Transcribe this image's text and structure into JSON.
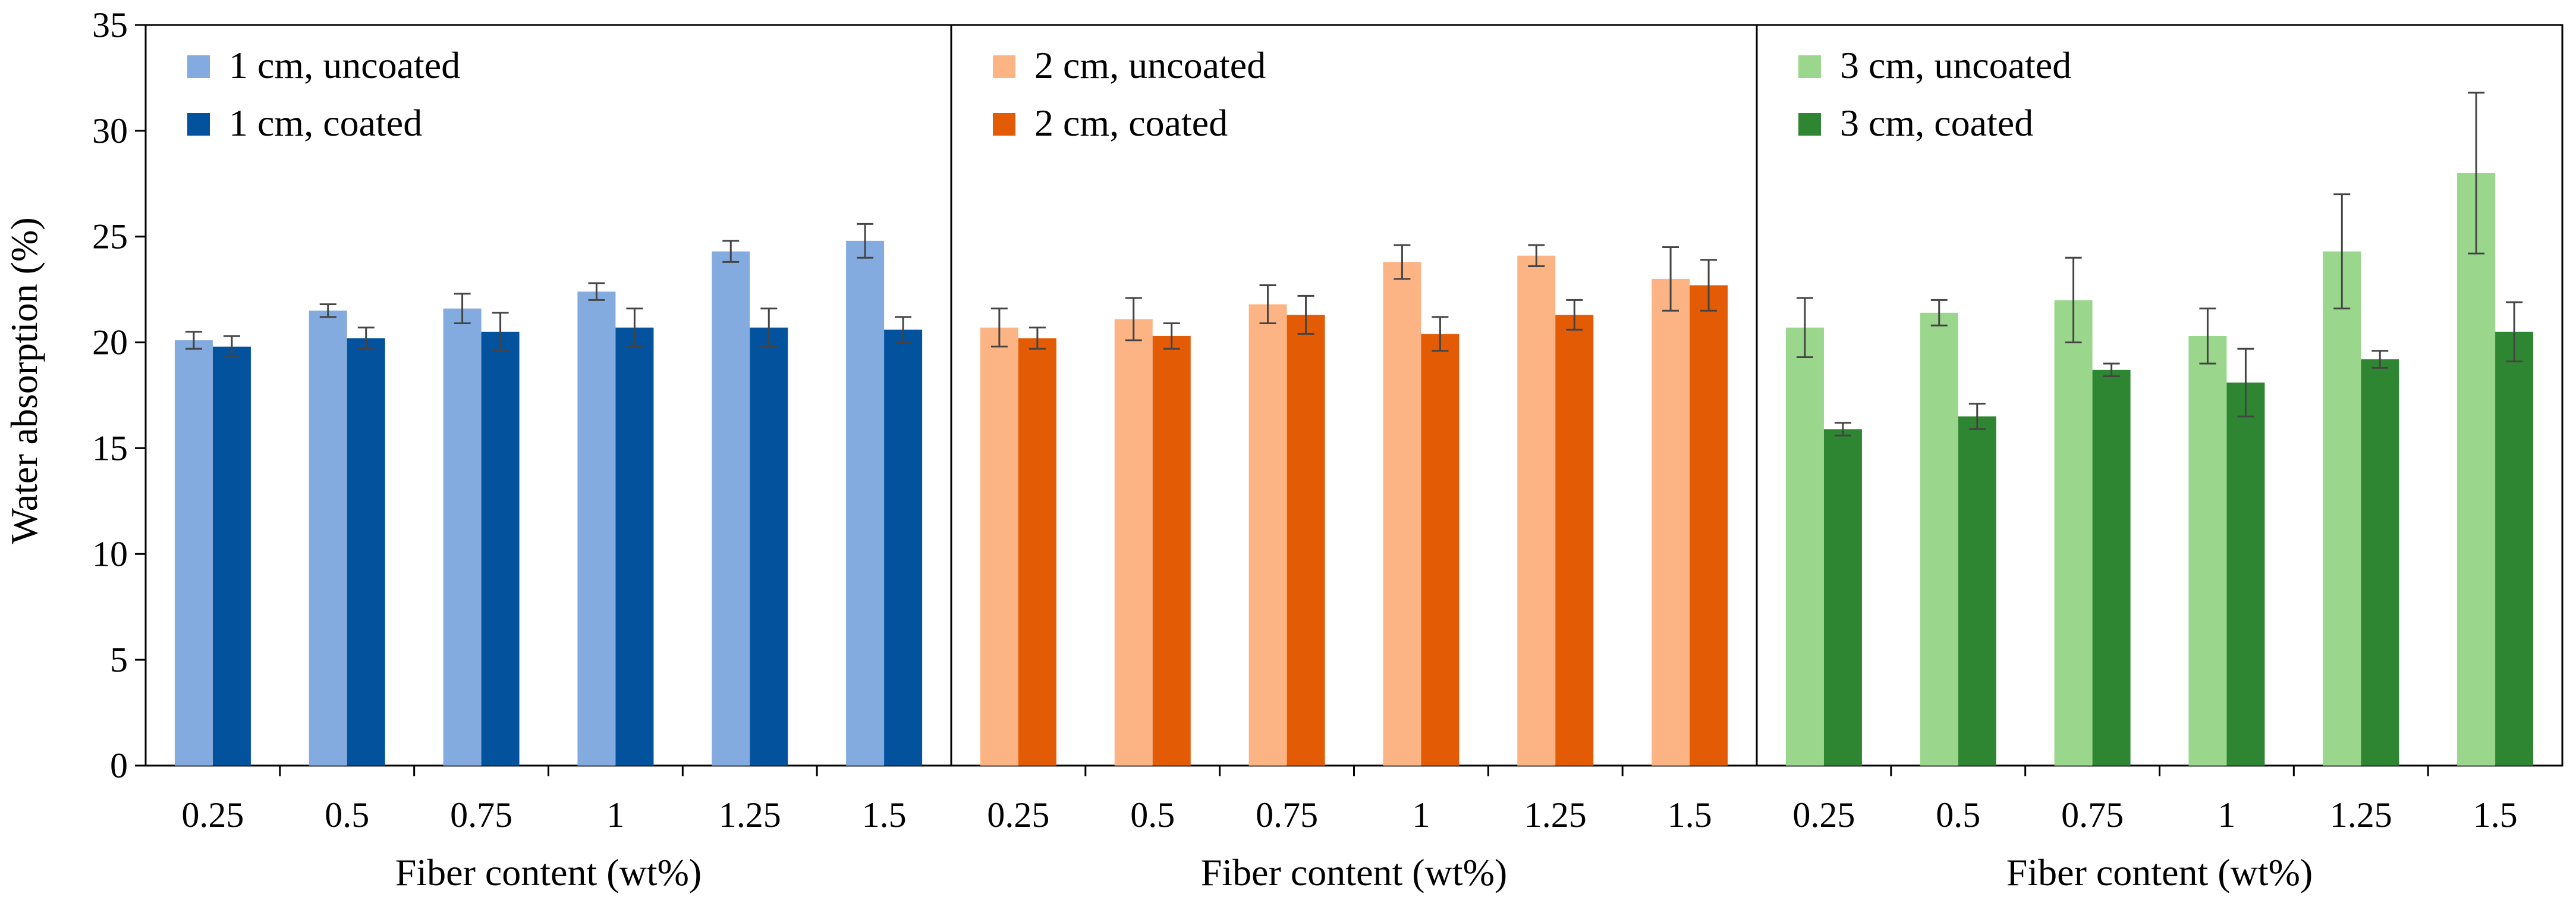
{
  "chart_data": {
    "type": "bar",
    "ylabel": "Water absorption (%)",
    "ylim": [
      0,
      35
    ],
    "yticks": [
      0,
      5,
      10,
      15,
      20,
      25,
      30,
      35
    ],
    "grid": false,
    "legend_position": "top-left of each panel",
    "panels": [
      {
        "xlabel": "Fiber content (wt%)",
        "categories": [
          "0.25",
          "0.5",
          "0.75",
          "1",
          "1.25",
          "1.5"
        ],
        "series": [
          {
            "name": "1 cm, uncoated",
            "color": "#84ABDF",
            "values": [
              20.1,
              21.5,
              21.6,
              22.4,
              24.3,
              24.8
            ],
            "errors": [
              0.4,
              0.3,
              0.7,
              0.4,
              0.5,
              0.8
            ]
          },
          {
            "name": "1 cm, coated",
            "color": "#03529E",
            "values": [
              19.8,
              20.2,
              20.5,
              20.7,
              20.7,
              20.6
            ],
            "errors": [
              0.5,
              0.5,
              0.9,
              0.9,
              0.9,
              0.6
            ]
          }
        ]
      },
      {
        "xlabel": "Fiber content (wt%)",
        "categories": [
          "0.25",
          "0.5",
          "0.75",
          "1",
          "1.25",
          "1.5"
        ],
        "series": [
          {
            "name": "2 cm, uncoated",
            "color": "#FDB484",
            "values": [
              20.7,
              21.1,
              21.8,
              23.8,
              24.1,
              23.0
            ],
            "errors": [
              0.9,
              1.0,
              0.9,
              0.8,
              0.5,
              1.5
            ]
          },
          {
            "name": "2 cm, coated",
            "color": "#E35B04",
            "values": [
              20.2,
              20.3,
              21.3,
              20.4,
              21.3,
              22.7
            ],
            "errors": [
              0.5,
              0.6,
              0.9,
              0.8,
              0.7,
              1.2
            ]
          }
        ]
      },
      {
        "xlabel": "Fiber content (wt%)",
        "categories": [
          "0.25",
          "0.5",
          "0.75",
          "1",
          "1.25",
          "1.5"
        ],
        "series": [
          {
            "name": "3 cm, uncoated",
            "color": "#9AD68C",
            "values": [
              20.7,
              21.4,
              22.0,
              20.3,
              24.3,
              28.0
            ],
            "errors": [
              1.4,
              0.6,
              2.0,
              1.3,
              2.7,
              3.8
            ]
          },
          {
            "name": "3 cm, coated",
            "color": "#2F8632",
            "values": [
              15.9,
              16.5,
              18.7,
              18.1,
              19.2,
              20.5
            ],
            "errors": [
              0.3,
              0.6,
              0.3,
              1.6,
              0.4,
              1.4
            ]
          }
        ]
      }
    ]
  }
}
